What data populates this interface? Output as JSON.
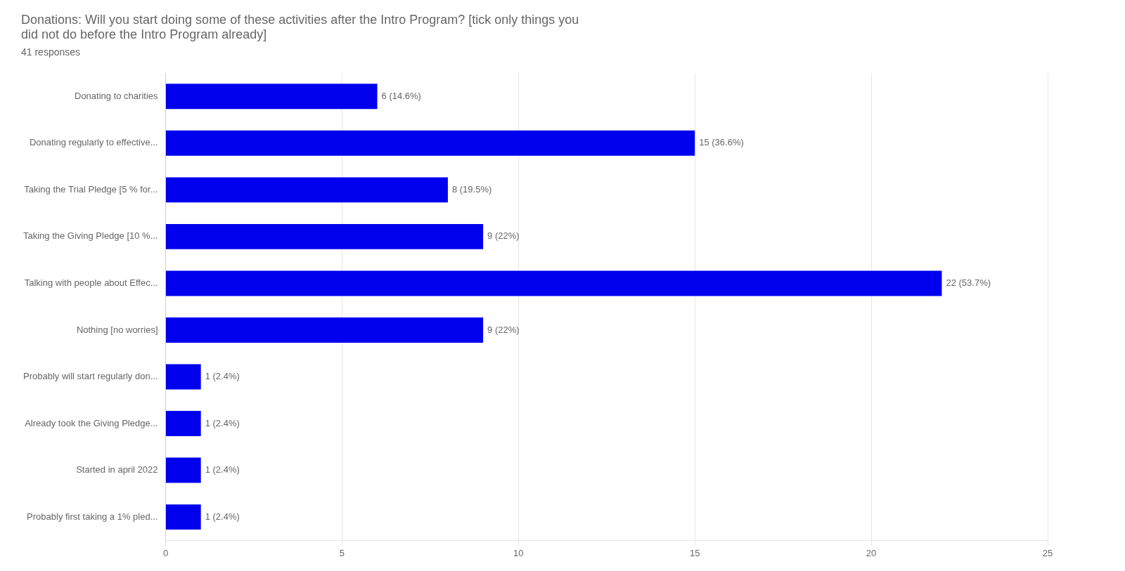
{
  "chart_data": {
    "type": "bar",
    "orientation": "horizontal",
    "title": "Donations: Will you start doing some of these activities after the Intro Program? [tick only things you\ndid not do before the Intro Program already]",
    "subtitle": "41 responses",
    "categories": [
      "Donating to charities",
      "Donating regularly to effective...",
      "Taking the Trial Pledge [5 % for...",
      "Taking the Giving Pledge [10 %...",
      "Talking with people about Effec...",
      "Nothing [no worries]",
      "Probably will start regularly don...",
      "Already took the Giving Pledge...",
      "Started in april 2022",
      "Probably first taking a 1% pled..."
    ],
    "values": [
      6,
      15,
      8,
      9,
      22,
      9,
      1,
      1,
      1,
      1
    ],
    "value_labels": [
      "6 (14.6%)",
      "15 (36.6%)",
      "8 (19.5%)",
      "9 (22%)",
      "22 (53.7%)",
      "9 (22%)",
      "1 (2.4%)",
      "1 (2.4%)",
      "1 (2.4%)",
      "1 (2.4%)"
    ],
    "data_labels": true,
    "color": "#0000ee",
    "xlim": [
      0,
      25
    ],
    "xticks": [
      0,
      5,
      10,
      15,
      20,
      25
    ],
    "grid": true
  }
}
